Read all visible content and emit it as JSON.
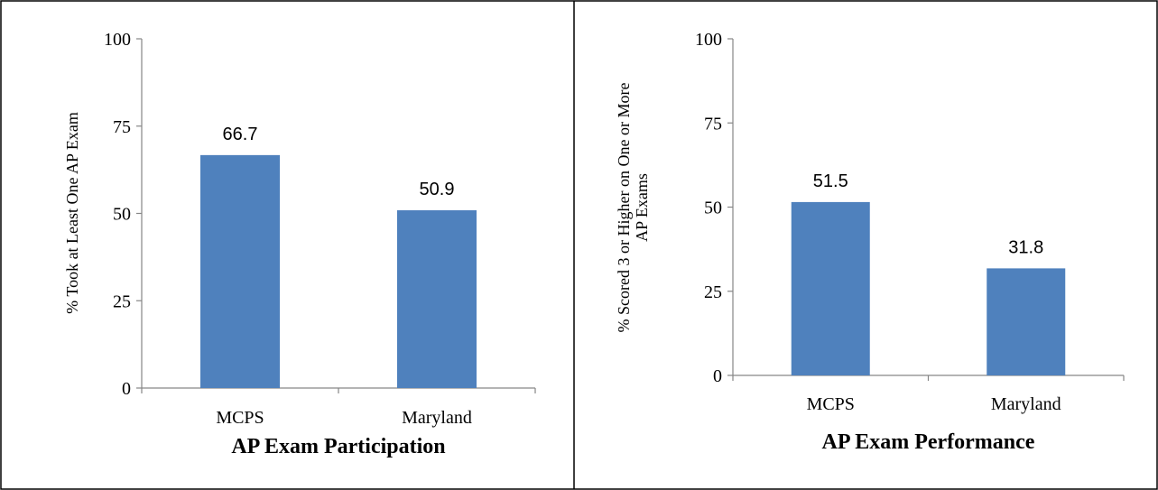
{
  "chart_data": [
    {
      "type": "bar",
      "title": "AP Exam Participation",
      "ylabel": "% Took at Least One AP Exam",
      "xlabel": "",
      "categories": [
        "MCPS",
        "Maryland"
      ],
      "values": [
        66.7,
        50.9
      ],
      "data_labels": [
        "66.7",
        "50.9"
      ],
      "yticks": [
        0,
        25,
        50,
        75,
        100
      ],
      "ylim": [
        0,
        100
      ],
      "grid": false,
      "legend": "none",
      "bar_color": "#4F81BD"
    },
    {
      "type": "bar",
      "title": "AP Exam Performance",
      "ylabel": [
        "% Scored 3 or Higher on One or More",
        "AP Exams"
      ],
      "xlabel": "",
      "categories": [
        "MCPS",
        "Maryland"
      ],
      "values": [
        51.5,
        31.8
      ],
      "data_labels": [
        "51.5",
        "31.8"
      ],
      "yticks": [
        0,
        25,
        50,
        75,
        100
      ],
      "ylim": [
        0,
        100
      ],
      "grid": false,
      "legend": "none",
      "bar_color": "#4F81BD"
    }
  ]
}
